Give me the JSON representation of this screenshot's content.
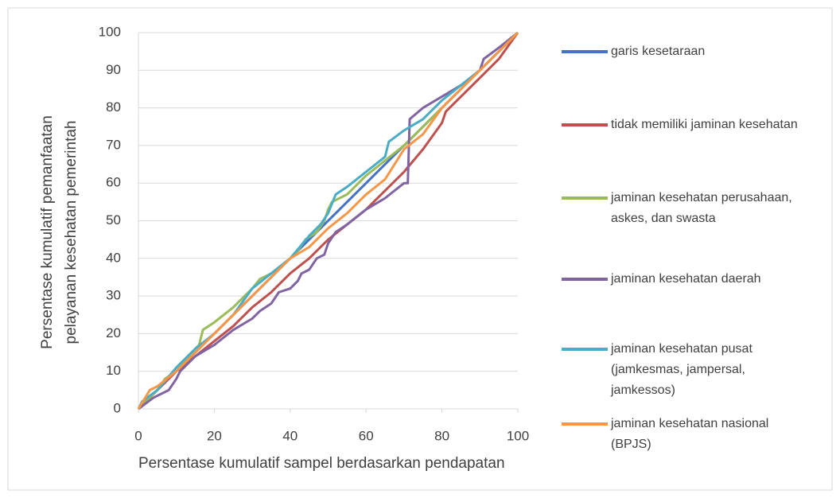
{
  "chart_data": {
    "type": "line",
    "xlabel": "Persentase kumulatif sampel berdasarkan pendapatan",
    "ylabel": "Persentase kumulatif pemanfaatan pelayanan kesehatan pemerintah",
    "xlim": [
      0,
      100
    ],
    "xticks": [
      0,
      20,
      40,
      60,
      80,
      100
    ],
    "ylim": [
      0,
      100
    ],
    "yticks": [
      0,
      10,
      20,
      30,
      40,
      50,
      60,
      70,
      80,
      90,
      100
    ],
    "grid": true,
    "legend": "right",
    "series": [
      {
        "name": "garis kesetaraan",
        "color": "#4472c4",
        "x": [
          0,
          100
        ],
        "values": [
          0,
          100
        ]
      },
      {
        "name": "tidak memiliki jaminan kesehatan",
        "color": "#c0504d",
        "x": [
          0,
          5,
          10,
          15,
          20,
          25,
          30,
          35,
          40,
          45,
          50,
          55,
          60,
          65,
          70,
          75,
          80,
          81,
          85,
          90,
          95,
          100
        ],
        "values": [
          0,
          5,
          10,
          14,
          18,
          22,
          27,
          31,
          36,
          40,
          45,
          49,
          53,
          58,
          63,
          69,
          76,
          79,
          83,
          88,
          93,
          100
        ]
      },
      {
        "name": "jaminan kesehatan perusahaan, askes, dan swasta",
        "color": "#9bbb59",
        "x": [
          0,
          5,
          7,
          10,
          15,
          16,
          17,
          20,
          25,
          28,
          30,
          32,
          35,
          40,
          42,
          44,
          47,
          49,
          50,
          51,
          55,
          60,
          65,
          70,
          75,
          80,
          85,
          90,
          95,
          100
        ],
        "values": [
          0,
          5,
          8,
          10,
          16,
          17,
          21,
          23,
          27,
          30,
          32,
          34.5,
          36,
          40,
          42,
          45,
          47,
          50,
          53,
          55,
          57,
          62,
          66,
          70,
          75,
          80,
          85,
          90,
          95,
          100
        ]
      },
      {
        "name": "jaminan kesehatan daerah",
        "color": "#8064a2",
        "x": [
          0,
          4,
          8,
          10,
          11,
          15,
          20,
          25,
          30,
          32,
          35,
          37,
          40,
          42,
          43,
          45,
          47,
          49,
          50,
          52,
          55,
          60,
          65,
          70,
          71,
          71.5,
          75,
          80,
          85,
          90,
          91,
          95,
          100
        ],
        "values": [
          0,
          3,
          5,
          8,
          10,
          14,
          17,
          21,
          24,
          26,
          28,
          31,
          32,
          34,
          36,
          37,
          40,
          41,
          44,
          47,
          49,
          53,
          56,
          60,
          60,
          77,
          80,
          83,
          86,
          90,
          93,
          96,
          100
        ]
      },
      {
        "name": "jaminan kesehatan pusat (jamkesmas, jampersal, jamkessos)",
        "color": "#4bacc6",
        "x": [
          0,
          1,
          5,
          10,
          15,
          20,
          25,
          30,
          35,
          40,
          45,
          48,
          50,
          52,
          55,
          60,
          65,
          66,
          70,
          75,
          80,
          85,
          90,
          95,
          100
        ],
        "values": [
          0,
          2,
          5,
          11,
          16,
          20,
          25,
          32,
          36,
          40,
          46,
          49,
          52,
          57,
          59,
          63,
          67,
          71,
          74,
          77,
          82,
          86,
          90,
          95,
          100
        ]
      },
      {
        "name": "jaminan kesehatan nasional (BPJS)",
        "color": "#f79646",
        "x": [
          0,
          3,
          5,
          10,
          15,
          20,
          25,
          30,
          35,
          40,
          45,
          50,
          55,
          60,
          65,
          70,
          75,
          80,
          85,
          90,
          95,
          100
        ],
        "values": [
          0,
          5,
          6,
          10,
          15,
          20,
          25,
          30,
          35,
          40,
          43,
          48,
          52,
          57,
          61,
          69,
          73,
          80,
          85,
          90,
          95,
          100
        ]
      }
    ]
  }
}
